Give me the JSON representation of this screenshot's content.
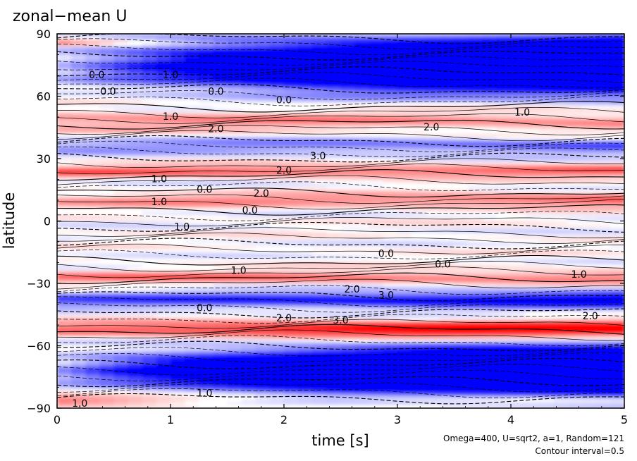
{
  "chart_data": {
    "type": "heatmap",
    "title": "zonal−mean U",
    "xlabel": "time [s]",
    "ylabel": "latitude",
    "xlim": [
      0,
      5
    ],
    "ylim": [
      -90,
      90
    ],
    "x_ticks": [
      "0",
      "1",
      "2",
      "3",
      "4",
      "5"
    ],
    "y_ticks": [
      "90",
      "60",
      "30",
      "0",
      "−30",
      "−60",
      "−90"
    ],
    "notes": [
      "Omega=400, U=sqrt2, a=1, Random=121",
      "Contour interval=0.5"
    ],
    "contour_interval": 0.5,
    "colors": {
      "positive": "#ff0000",
      "negative": "#0000ff",
      "zero": "#ffffff",
      "contour": "#000000"
    },
    "contour_labels": [
      {
        "text": "0.0",
        "x": 0.45,
        "y": 62
      },
      {
        "text": "0.0",
        "x": 0.35,
        "y": 70
      },
      {
        "text": "1.0",
        "x": 1.0,
        "y": 70
      },
      {
        "text": "0.0",
        "x": 1.4,
        "y": 62
      },
      {
        "text": "1.0",
        "x": 1.0,
        "y": 50
      },
      {
        "text": "2.0",
        "x": 1.4,
        "y": 44
      },
      {
        "text": "0.0",
        "x": 2.0,
        "y": 58
      },
      {
        "text": "1.0",
        "x": 4.1,
        "y": 52
      },
      {
        "text": "2.0",
        "x": 3.3,
        "y": 45
      },
      {
        "text": "3.0",
        "x": 2.3,
        "y": 31
      },
      {
        "text": "2.0",
        "x": 2.0,
        "y": 24
      },
      {
        "text": "1.0",
        "x": 0.9,
        "y": 20
      },
      {
        "text": "0.0",
        "x": 1.3,
        "y": 15
      },
      {
        "text": "2.0",
        "x": 1.8,
        "y": 13
      },
      {
        "text": "1.0",
        "x": 0.9,
        "y": 9
      },
      {
        "text": "0.0",
        "x": 1.7,
        "y": 5
      },
      {
        "text": "1.0",
        "x": 1.1,
        "y": -3
      },
      {
        "text": "0.0",
        "x": 2.9,
        "y": -16
      },
      {
        "text": "0.0",
        "x": 3.4,
        "y": -21
      },
      {
        "text": "1.0",
        "x": 1.6,
        "y": -24
      },
      {
        "text": "2.0",
        "x": 2.6,
        "y": -33
      },
      {
        "text": "3.0",
        "x": 2.9,
        "y": -36
      },
      {
        "text": "0.0",
        "x": 1.3,
        "y": -42
      },
      {
        "text": "2.0",
        "x": 2.0,
        "y": -47
      },
      {
        "text": "3.0",
        "x": 2.5,
        "y": -48
      },
      {
        "text": "1.0",
        "x": 4.6,
        "y": -26
      },
      {
        "text": "2.0",
        "x": 4.7,
        "y": -46
      },
      {
        "text": "1.0",
        "x": 0.2,
        "y": -88
      },
      {
        "text": "1.0",
        "x": 1.3,
        "y": -83
      }
    ]
  }
}
